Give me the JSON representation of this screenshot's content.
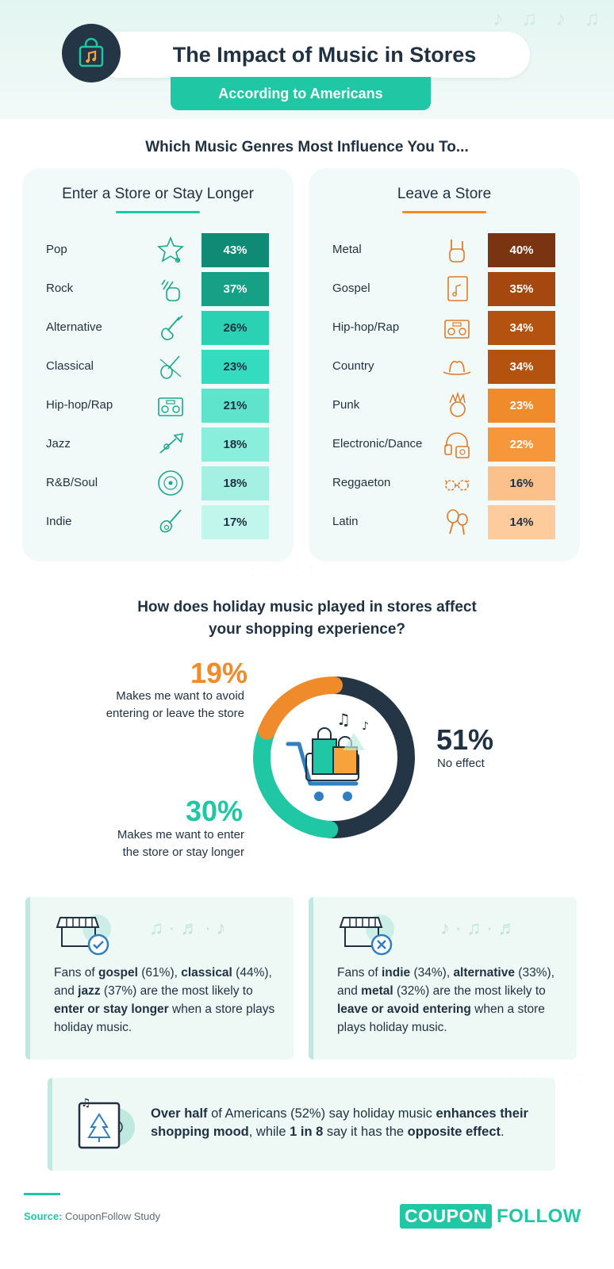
{
  "header": {
    "title": "The Impact of Music in Stores",
    "subtitle": "According to Americans"
  },
  "question1": "Which Music Genres Most Influence You To...",
  "enter_panel": {
    "title": "Enter a Store or Stay Longer",
    "rows": [
      {
        "genre": "Pop",
        "value": "43%",
        "icon": "star-music-icon"
      },
      {
        "genre": "Rock",
        "value": "37%",
        "icon": "rock-hand-icon"
      },
      {
        "genre": "Alternative",
        "value": "26%",
        "icon": "electric-guitar-icon"
      },
      {
        "genre": "Classical",
        "value": "23%",
        "icon": "violin-icon"
      },
      {
        "genre": "Hip-hop/Rap",
        "value": "21%",
        "icon": "boombox-icon"
      },
      {
        "genre": "Jazz",
        "value": "18%",
        "icon": "trumpet-icon"
      },
      {
        "genre": "R&B/Soul",
        "value": "18%",
        "icon": "vinyl-record-icon"
      },
      {
        "genre": "Indie",
        "value": "17%",
        "icon": "acoustic-guitar-icon"
      }
    ]
  },
  "leave_panel": {
    "title": "Leave a Store",
    "rows": [
      {
        "genre": "Metal",
        "value": "40%",
        "icon": "horns-hand-icon"
      },
      {
        "genre": "Gospel",
        "value": "35%",
        "icon": "hymn-book-icon"
      },
      {
        "genre": "Hip-hop/Rap",
        "value": "34%",
        "icon": "boombox-icon"
      },
      {
        "genre": "Country",
        "value": "34%",
        "icon": "cowboy-hat-icon"
      },
      {
        "genre": "Punk",
        "value": "23%",
        "icon": "mohawk-head-icon"
      },
      {
        "genre": "Electronic/Dance",
        "value": "22%",
        "icon": "headphones-icon"
      },
      {
        "genre": "Reggaeton",
        "value": "16%",
        "icon": "sunglasses-icon"
      },
      {
        "genre": "Latin",
        "value": "14%",
        "icon": "maracas-icon"
      }
    ]
  },
  "question2": {
    "line1": "How does holiday music played in stores affect",
    "line2": "your shopping experience?"
  },
  "donut": {
    "avoid_value": "19%",
    "avoid_line1": "Makes me want to avoid",
    "avoid_line2": "entering or leave the store",
    "enter_value": "30%",
    "enter_line1": "Makes me want to enter",
    "enter_line2": "the store or stay longer",
    "none_value": "51%",
    "none_label": "No effect"
  },
  "fan_boxes": {
    "left": {
      "p1": "Fans of ",
      "b1": "gospel",
      "p2": " (61%), ",
      "b2": "classical",
      "p3": " (44%), and ",
      "b3": "jazz",
      "p4": " (37%) are the most likely to ",
      "b4": "enter or stay longer",
      "p5": " when a store plays holiday music."
    },
    "right": {
      "p1": "Fans of ",
      "b1": "indie",
      "p2": " (34%), ",
      "b2": "alternative",
      "p3": " (33%), and ",
      "b3": "metal",
      "p4": " (32%) are the most likely to ",
      "b4": "leave or avoid entering",
      "p5": " when a store plays holiday music."
    }
  },
  "summary": {
    "b1": "Over half",
    "p1": " of Americans (52%) say holiday music ",
    "b2": "enhances their shopping mood",
    "p2": ", while ",
    "b3": "1 in 8",
    "p3": " say it has the ",
    "b4": "opposite effect",
    "p4": "."
  },
  "footer": {
    "source_label": "Source:",
    "source_text": "CouponFollow Study",
    "logo_left": "COUPON",
    "logo_right": "FOLLOW"
  },
  "colors": {
    "teal": "#1fc7a4",
    "navy": "#243645",
    "orange": "#f08b2c"
  },
  "chart_data": [
    {
      "type": "bar",
      "title": "Enter a Store or Stay Longer",
      "categories": [
        "Pop",
        "Rock",
        "Alternative",
        "Classical",
        "Hip-hop/Rap",
        "Jazz",
        "R&B/Soul",
        "Indie"
      ],
      "values": [
        43,
        37,
        26,
        23,
        21,
        18,
        18,
        17
      ]
    },
    {
      "type": "bar",
      "title": "Leave a Store",
      "categories": [
        "Metal",
        "Gospel",
        "Hip-hop/Rap",
        "Country",
        "Punk",
        "Electronic/Dance",
        "Reggaeton",
        "Latin"
      ],
      "values": [
        40,
        35,
        34,
        34,
        23,
        22,
        16,
        14
      ]
    },
    {
      "type": "pie",
      "categories": [
        "Makes me want to avoid entering or leave the store",
        "Makes me want to enter the store or stay longer",
        "No effect"
      ],
      "values": [
        19,
        30,
        51
      ]
    }
  ]
}
